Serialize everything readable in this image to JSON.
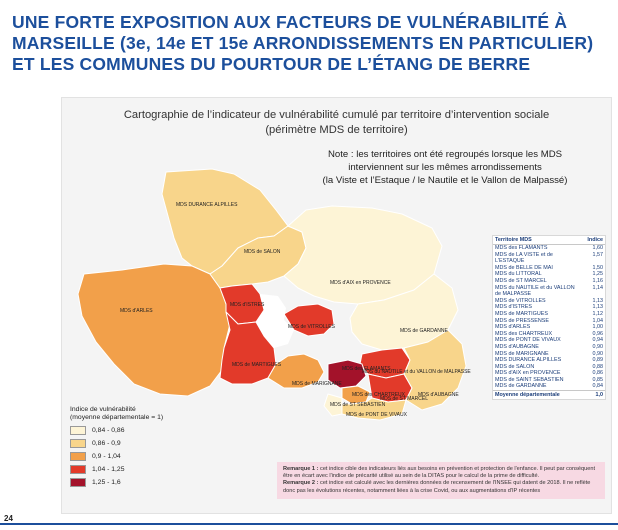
{
  "headline": {
    "line1": "UNE FORTE EXPOSITION AUX FACTEURS DE VULNÉRABILITÉ À",
    "line2": "MARSEILLE (3e, 14e ET 15e ARRONDISSEMENTS EN PARTICULIER)",
    "line3": "ET LES COMMUNES DU POURTOUR DE L’ÉTANG DE BERRE"
  },
  "map": {
    "title_line1": "Cartographie de l’indicateur de vulnérabilité cumulé par territoire d’intervention sociale",
    "title_line2": "(périmètre MDS de territoire)",
    "note_line1": "Note : les territoires ont été regroupés lorsque les MDS",
    "note_line2": "interviennent sur les mêmes arrondissements",
    "note_line3": "(la Viste et l’Estaque / le Nautile et le Vallon de Malpassé)",
    "labels": {
      "durance": "MDS DURANCE ALPILLES",
      "arles": "MDS d'ARLES",
      "salon": "MDS de SALON",
      "aix": "MDS d'AIX en PROVENCE",
      "gardanne": "MDS de GARDANNE",
      "istres": "MDS d'ISTRES",
      "vitrolles": "MDS de VITROLLES",
      "martigues": "MDS de MARTIGUES",
      "marignane": "MDS de MARIGNANE",
      "nautile": "MDS du NAUTILE et du VALLON de MALPASSE",
      "flamants": "MDS des FLAMANTS",
      "chartreux": "MDS des CHARTREUX",
      "st_marcel": "MDS de ST MARCEL",
      "aubagne": "MDS d'AUBAGNE",
      "st_sebastien": "MDS de ST SEBASTIEN",
      "pont_de_vivaux": "MDS de PONT DE VIVAUX"
    },
    "colors": {
      "c1": "#fdf4d6",
      "c2": "#f8d58b",
      "c3": "#f2a04a",
      "c4": "#e23a2a",
      "c5": "#a3122a"
    }
  },
  "legend": {
    "title_line1": "Indice de vulnérabilité",
    "title_line2": "(moyenne départementale = 1)",
    "items": [
      "0,84 - 0,86",
      "0,86 - 0,9",
      "0,9 - 1,04",
      "1,04 - 1,25",
      "1,25 - 1,6"
    ]
  },
  "table": {
    "header_territoire": "Territoire MDS",
    "header_indice": "Indice",
    "rows": [
      {
        "name": "MDS des FLAMANTS",
        "value": "1,60"
      },
      {
        "name": "MDS de LA VISTE et de L'ESTAQUE",
        "value": "1,57"
      },
      {
        "name": "MDS de BELLE DE MAI",
        "value": "1,50"
      },
      {
        "name": "MDS du LITTORAL",
        "value": "1,25"
      },
      {
        "name": "MDS de ST MARCEL",
        "value": "1,16"
      },
      {
        "name": "MDS du NAUTILE et du VALLON de MALPASSE",
        "value": "1,14"
      },
      {
        "name": "MDS de VITROLLES",
        "value": "1,13"
      },
      {
        "name": "MDS d'ISTRES",
        "value": "1,13"
      },
      {
        "name": "MDS de MARTIGUES",
        "value": "1,12"
      },
      {
        "name": "MDS de PRESSENSE",
        "value": "1,04"
      },
      {
        "name": "MDS d'ARLES",
        "value": "1,00"
      },
      {
        "name": "MDS des CHARTREUX",
        "value": "0,96"
      },
      {
        "name": "MDS de PONT DE VIVAUX",
        "value": "0,94"
      },
      {
        "name": "MDS d'AUBAGNE",
        "value": "0,90"
      },
      {
        "name": "MDS de MARIGNANE",
        "value": "0,90"
      },
      {
        "name": "MDS DURANCE ALPILLES",
        "value": "0,89"
      },
      {
        "name": "MDS de SALON",
        "value": "0,88"
      },
      {
        "name": "MDS d'AIX en PROVENCE",
        "value": "0,86"
      },
      {
        "name": "MDS de SAINT SEBASTIEN",
        "value": "0,85"
      },
      {
        "name": "MDS de GARDANNE",
        "value": "0,84"
      }
    ],
    "footer_label": "Moyenne départementale",
    "footer_value": "1,0"
  },
  "remark": {
    "r1_label": "Remarque 1 :",
    "r1_text": "cet indice cible des indicateurs liés aux besoins en prévention et protection de l'enfance. Il peut par conséquent être en écart avec l'indice de précarité utilisé au sein de la DITAS pour le calcul de la prime de difficulté.",
    "r2_label": "Remarque 2 :",
    "r2_text": "cet indice est calculé avec les dernières données de recensement de l'INSEE qui datent de 2018. Il ne reflète donc pas les évolutions récentes, notamment liées à la crise Covid, ou aux augmentations d'IP récentes"
  },
  "page": {
    "number": "24"
  }
}
